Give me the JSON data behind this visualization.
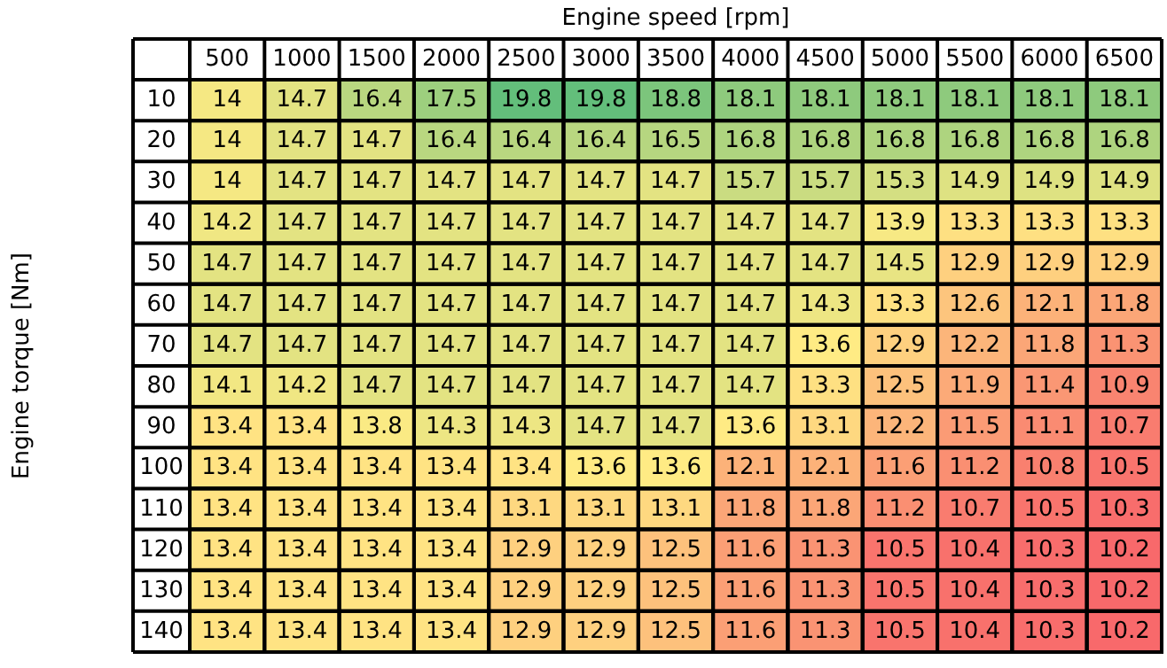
{
  "chart_data": {
    "type": "heatmap",
    "xlabel": "Engine speed [rpm]",
    "ylabel": "Engine torque [Nm]",
    "categories": [
      "500",
      "1000",
      "1500",
      "2000",
      "2500",
      "3000",
      "3500",
      "4000",
      "4500",
      "5000",
      "5500",
      "6000",
      "6500"
    ],
    "y_categories": [
      "10",
      "20",
      "30",
      "40",
      "50",
      "60",
      "70",
      "80",
      "90",
      "100",
      "110",
      "120",
      "130",
      "140"
    ],
    "data_labels": true,
    "cells": [
      [
        14,
        14.7,
        16.4,
        17.5,
        19.8,
        19.8,
        18.8,
        18.1,
        18.1,
        18.1,
        18.1,
        18.1,
        18.1
      ],
      [
        14,
        14.7,
        14.7,
        16.4,
        16.4,
        16.4,
        16.5,
        16.8,
        16.8,
        16.8,
        16.8,
        16.8,
        16.8
      ],
      [
        14,
        14.7,
        14.7,
        14.7,
        14.7,
        14.7,
        14.7,
        15.7,
        15.7,
        15.3,
        14.9,
        14.9,
        14.9
      ],
      [
        14.2,
        14.7,
        14.7,
        14.7,
        14.7,
        14.7,
        14.7,
        14.7,
        14.7,
        13.9,
        13.3,
        13.3,
        13.3
      ],
      [
        14.7,
        14.7,
        14.7,
        14.7,
        14.7,
        14.7,
        14.7,
        14.7,
        14.7,
        14.5,
        12.9,
        12.9,
        12.9
      ],
      [
        14.7,
        14.7,
        14.7,
        14.7,
        14.7,
        14.7,
        14.7,
        14.7,
        14.3,
        13.3,
        12.6,
        12.1,
        11.8
      ],
      [
        14.7,
        14.7,
        14.7,
        14.7,
        14.7,
        14.7,
        14.7,
        14.7,
        13.6,
        12.9,
        12.2,
        11.8,
        11.3
      ],
      [
        14.1,
        14.2,
        14.7,
        14.7,
        14.7,
        14.7,
        14.7,
        14.7,
        13.3,
        12.5,
        11.9,
        11.4,
        10.9
      ],
      [
        13.4,
        13.4,
        13.8,
        14.3,
        14.3,
        14.7,
        14.7,
        13.6,
        13.1,
        12.2,
        11.5,
        11.1,
        10.7
      ],
      [
        13.4,
        13.4,
        13.4,
        13.4,
        13.4,
        13.6,
        13.6,
        12.1,
        12.1,
        11.6,
        11.2,
        10.8,
        10.5
      ],
      [
        13.4,
        13.4,
        13.4,
        13.4,
        13.1,
        13.1,
        13.1,
        11.8,
        11.8,
        11.2,
        10.7,
        10.5,
        10.3
      ],
      [
        13.4,
        13.4,
        13.4,
        13.4,
        12.9,
        12.9,
        12.5,
        11.6,
        11.3,
        10.5,
        10.4,
        10.3,
        10.2
      ],
      [
        13.4,
        13.4,
        13.4,
        13.4,
        12.9,
        12.9,
        12.5,
        11.6,
        11.3,
        10.5,
        10.4,
        10.3,
        10.2
      ],
      [
        13.4,
        13.4,
        13.4,
        13.4,
        12.9,
        12.9,
        12.5,
        11.6,
        11.3,
        10.5,
        10.4,
        10.3,
        10.2
      ]
    ]
  }
}
